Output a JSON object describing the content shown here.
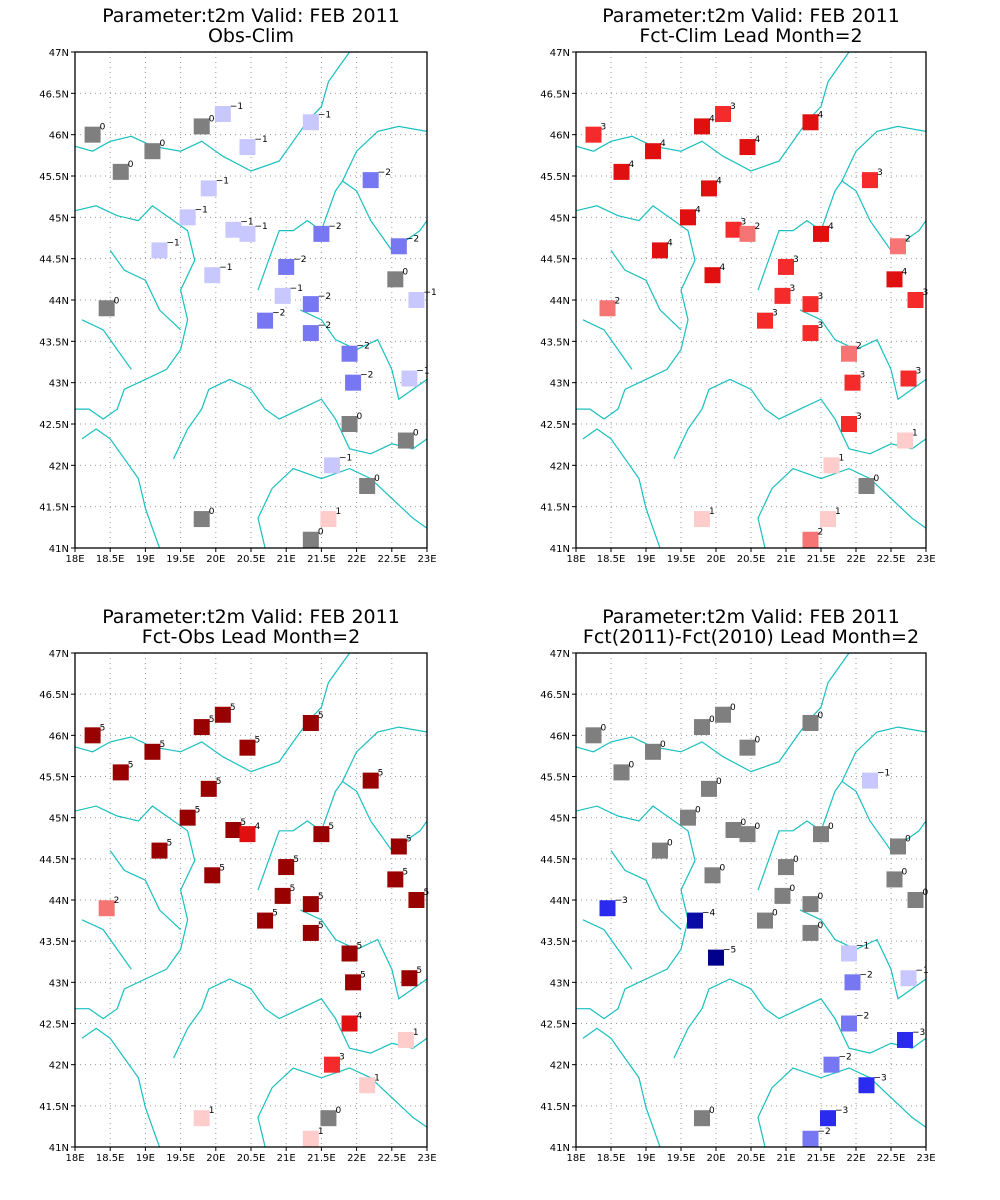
{
  "chart_data": [
    {
      "type": "scatter",
      "title": "Parameter:t2m Valid: FEB 2011",
      "subtitle": "Obs-Clim",
      "x_ticks": [
        "18E",
        "18.5E",
        "19E",
        "19.5E",
        "20E",
        "20.5E",
        "21E",
        "21.5E",
        "22E",
        "22.5E",
        "23E"
      ],
      "y_ticks": [
        "41N",
        "41.5N",
        "42N",
        "42.5N",
        "43N",
        "43.5N",
        "44N",
        "44.5N",
        "45N",
        "45.5N",
        "46N",
        "46.5N",
        "47N"
      ],
      "xlim": [
        18,
        23
      ],
      "ylim": [
        41,
        47
      ],
      "points": [
        {
          "lon": 18.25,
          "lat": 46.0,
          "v": 0
        },
        {
          "lon": 18.65,
          "lat": 45.55,
          "v": 0
        },
        {
          "lon": 19.1,
          "lat": 45.8,
          "v": 0
        },
        {
          "lon": 19.8,
          "lat": 46.1,
          "v": 0
        },
        {
          "lon": 20.1,
          "lat": 46.25,
          "v": -1
        },
        {
          "lon": 20.45,
          "lat": 45.85,
          "v": -1
        },
        {
          "lon": 21.35,
          "lat": 46.15,
          "v": -1
        },
        {
          "lon": 22.2,
          "lat": 45.45,
          "v": -2
        },
        {
          "lon": 19.9,
          "lat": 45.35,
          "v": -1
        },
        {
          "lon": 19.6,
          "lat": 45.0,
          "v": -1
        },
        {
          "lon": 20.25,
          "lat": 44.85,
          "v": -1
        },
        {
          "lon": 20.45,
          "lat": 44.8,
          "v": -1
        },
        {
          "lon": 21.5,
          "lat": 44.8,
          "v": -2
        },
        {
          "lon": 22.6,
          "lat": 44.65,
          "v": -2
        },
        {
          "lon": 19.2,
          "lat": 44.6,
          "v": -1
        },
        {
          "lon": 19.95,
          "lat": 44.3,
          "v": -1
        },
        {
          "lon": 21.0,
          "lat": 44.4,
          "v": -2
        },
        {
          "lon": 22.55,
          "lat": 44.25,
          "v": 0
        },
        {
          "lon": 20.95,
          "lat": 44.05,
          "v": -1
        },
        {
          "lon": 21.35,
          "lat": 43.95,
          "v": -2
        },
        {
          "lon": 22.85,
          "lat": 44.0,
          "v": -1
        },
        {
          "lon": 18.45,
          "lat": 43.9,
          "v": 0
        },
        {
          "lon": 20.7,
          "lat": 43.75,
          "v": -2
        },
        {
          "lon": 21.35,
          "lat": 43.6,
          "v": -2
        },
        {
          "lon": 21.9,
          "lat": 43.35,
          "v": -2
        },
        {
          "lon": 21.95,
          "lat": 43.0,
          "v": -2
        },
        {
          "lon": 22.75,
          "lat": 43.05,
          "v": -1
        },
        {
          "lon": 21.9,
          "lat": 42.5,
          "v": 0
        },
        {
          "lon": 22.7,
          "lat": 42.3,
          "v": 0
        },
        {
          "lon": 21.65,
          "lat": 42.0,
          "v": -1
        },
        {
          "lon": 22.15,
          "lat": 41.75,
          "v": 0
        },
        {
          "lon": 19.8,
          "lat": 41.35,
          "v": 0
        },
        {
          "lon": 21.6,
          "lat": 41.35,
          "v": 1
        },
        {
          "lon": 21.35,
          "lat": 41.1,
          "v": 0
        }
      ]
    },
    {
      "type": "scatter",
      "title": "Parameter:t2m Valid: FEB 2011",
      "subtitle": "Fct-Clim Lead Month=2",
      "x_ticks": [
        "18E",
        "18.5E",
        "19E",
        "19.5E",
        "20E",
        "20.5E",
        "21E",
        "21.5E",
        "22E",
        "22.5E",
        "23E"
      ],
      "y_ticks": [
        "41N",
        "41.5N",
        "42N",
        "42.5N",
        "43N",
        "43.5N",
        "44N",
        "44.5N",
        "45N",
        "45.5N",
        "46N",
        "46.5N",
        "47N"
      ],
      "xlim": [
        18,
        23
      ],
      "ylim": [
        41,
        47
      ],
      "points": [
        {
          "lon": 18.25,
          "lat": 46.0,
          "v": 3
        },
        {
          "lon": 18.65,
          "lat": 45.55,
          "v": 4
        },
        {
          "lon": 19.1,
          "lat": 45.8,
          "v": 4
        },
        {
          "lon": 19.8,
          "lat": 46.1,
          "v": 4
        },
        {
          "lon": 20.1,
          "lat": 46.25,
          "v": 3
        },
        {
          "lon": 20.45,
          "lat": 45.85,
          "v": 4
        },
        {
          "lon": 21.35,
          "lat": 46.15,
          "v": 4
        },
        {
          "lon": 22.2,
          "lat": 45.45,
          "v": 3
        },
        {
          "lon": 19.9,
          "lat": 45.35,
          "v": 4
        },
        {
          "lon": 19.6,
          "lat": 45.0,
          "v": 4
        },
        {
          "lon": 20.25,
          "lat": 44.85,
          "v": 3
        },
        {
          "lon": 20.45,
          "lat": 44.8,
          "v": 2
        },
        {
          "lon": 21.5,
          "lat": 44.8,
          "v": 4
        },
        {
          "lon": 22.6,
          "lat": 44.65,
          "v": 2
        },
        {
          "lon": 19.2,
          "lat": 44.6,
          "v": 4
        },
        {
          "lon": 19.95,
          "lat": 44.3,
          "v": 4
        },
        {
          "lon": 21.0,
          "lat": 44.4,
          "v": 3
        },
        {
          "lon": 22.55,
          "lat": 44.25,
          "v": 4
        },
        {
          "lon": 20.95,
          "lat": 44.05,
          "v": 3
        },
        {
          "lon": 21.35,
          "lat": 43.95,
          "v": 3
        },
        {
          "lon": 22.85,
          "lat": 44.0,
          "v": 3
        },
        {
          "lon": 18.45,
          "lat": 43.9,
          "v": 2
        },
        {
          "lon": 20.7,
          "lat": 43.75,
          "v": 3
        },
        {
          "lon": 21.35,
          "lat": 43.6,
          "v": 3
        },
        {
          "lon": 21.9,
          "lat": 43.35,
          "v": 2
        },
        {
          "lon": 21.95,
          "lat": 43.0,
          "v": 3
        },
        {
          "lon": 22.75,
          "lat": 43.05,
          "v": 3
        },
        {
          "lon": 21.9,
          "lat": 42.5,
          "v": 3
        },
        {
          "lon": 22.7,
          "lat": 42.3,
          "v": 1
        },
        {
          "lon": 21.65,
          "lat": 42.0,
          "v": 1
        },
        {
          "lon": 22.15,
          "lat": 41.75,
          "v": 0
        },
        {
          "lon": 19.8,
          "lat": 41.35,
          "v": 1
        },
        {
          "lon": 21.6,
          "lat": 41.35,
          "v": 1
        },
        {
          "lon": 21.35,
          "lat": 41.1,
          "v": 2
        }
      ]
    },
    {
      "type": "scatter",
      "title": "Parameter:t2m Valid: FEB 2011",
      "subtitle": "Fct-Obs Lead Month=2",
      "x_ticks": [
        "18E",
        "18.5E",
        "19E",
        "19.5E",
        "20E",
        "20.5E",
        "21E",
        "21.5E",
        "22E",
        "22.5E",
        "23E"
      ],
      "y_ticks": [
        "41N",
        "41.5N",
        "42N",
        "42.5N",
        "43N",
        "43.5N",
        "44N",
        "44.5N",
        "45N",
        "45.5N",
        "46N",
        "46.5N",
        "47N"
      ],
      "xlim": [
        18,
        23
      ],
      "ylim": [
        41,
        47
      ],
      "points": [
        {
          "lon": 18.25,
          "lat": 46.0,
          "v": 5
        },
        {
          "lon": 18.65,
          "lat": 45.55,
          "v": 5
        },
        {
          "lon": 19.1,
          "lat": 45.8,
          "v": 5
        },
        {
          "lon": 19.8,
          "lat": 46.1,
          "v": 5
        },
        {
          "lon": 20.1,
          "lat": 46.25,
          "v": 5
        },
        {
          "lon": 20.45,
          "lat": 45.85,
          "v": 5
        },
        {
          "lon": 21.35,
          "lat": 46.15,
          "v": 5
        },
        {
          "lon": 22.2,
          "lat": 45.45,
          "v": 5
        },
        {
          "lon": 19.9,
          "lat": 45.35,
          "v": 5
        },
        {
          "lon": 19.6,
          "lat": 45.0,
          "v": 5
        },
        {
          "lon": 20.25,
          "lat": 44.85,
          "v": 5
        },
        {
          "lon": 20.45,
          "lat": 44.8,
          "v": 4
        },
        {
          "lon": 21.5,
          "lat": 44.8,
          "v": 5
        },
        {
          "lon": 22.6,
          "lat": 44.65,
          "v": 5
        },
        {
          "lon": 19.2,
          "lat": 44.6,
          "v": 5
        },
        {
          "lon": 19.95,
          "lat": 44.3,
          "v": 5
        },
        {
          "lon": 21.0,
          "lat": 44.4,
          "v": 5
        },
        {
          "lon": 22.55,
          "lat": 44.25,
          "v": 5
        },
        {
          "lon": 20.95,
          "lat": 44.05,
          "v": 5
        },
        {
          "lon": 21.35,
          "lat": 43.95,
          "v": 5
        },
        {
          "lon": 22.85,
          "lat": 44.0,
          "v": 5
        },
        {
          "lon": 18.45,
          "lat": 43.9,
          "v": 2
        },
        {
          "lon": 20.7,
          "lat": 43.75,
          "v": 5
        },
        {
          "lon": 21.35,
          "lat": 43.6,
          "v": 5
        },
        {
          "lon": 21.9,
          "lat": 43.35,
          "v": 5
        },
        {
          "lon": 21.95,
          "lat": 43.0,
          "v": 5
        },
        {
          "lon": 22.75,
          "lat": 43.05,
          "v": 5
        },
        {
          "lon": 21.9,
          "lat": 42.5,
          "v": 4
        },
        {
          "lon": 22.7,
          "lat": 42.3,
          "v": 1
        },
        {
          "lon": 21.65,
          "lat": 42.0,
          "v": 3
        },
        {
          "lon": 22.15,
          "lat": 41.75,
          "v": 1
        },
        {
          "lon": 19.8,
          "lat": 41.35,
          "v": 1
        },
        {
          "lon": 21.6,
          "lat": 41.35,
          "v": 0
        },
        {
          "lon": 21.35,
          "lat": 41.1,
          "v": 1
        }
      ]
    },
    {
      "type": "scatter",
      "title": "Parameter:t2m Valid: FEB 2011",
      "subtitle": "Fct(2011)-Fct(2010) Lead Month=2",
      "x_ticks": [
        "18E",
        "18.5E",
        "19E",
        "19.5E",
        "20E",
        "20.5E",
        "21E",
        "21.5E",
        "22E",
        "22.5E",
        "23E"
      ],
      "y_ticks": [
        "41N",
        "41.5N",
        "42N",
        "42.5N",
        "43N",
        "43.5N",
        "44N",
        "44.5N",
        "45N",
        "45.5N",
        "46N",
        "46.5N",
        "47N"
      ],
      "xlim": [
        18,
        23
      ],
      "ylim": [
        41,
        47
      ],
      "points": [
        {
          "lon": 18.25,
          "lat": 46.0,
          "v": 0
        },
        {
          "lon": 18.65,
          "lat": 45.55,
          "v": 0
        },
        {
          "lon": 19.1,
          "lat": 45.8,
          "v": 0
        },
        {
          "lon": 19.8,
          "lat": 46.1,
          "v": 0
        },
        {
          "lon": 20.1,
          "lat": 46.25,
          "v": 0
        },
        {
          "lon": 20.45,
          "lat": 45.85,
          "v": 0
        },
        {
          "lon": 21.35,
          "lat": 46.15,
          "v": 0
        },
        {
          "lon": 22.2,
          "lat": 45.45,
          "v": -1
        },
        {
          "lon": 19.9,
          "lat": 45.35,
          "v": 0
        },
        {
          "lon": 19.6,
          "lat": 45.0,
          "v": 0
        },
        {
          "lon": 20.25,
          "lat": 44.85,
          "v": 0
        },
        {
          "lon": 20.45,
          "lat": 44.8,
          "v": 0
        },
        {
          "lon": 21.5,
          "lat": 44.8,
          "v": 0
        },
        {
          "lon": 22.6,
          "lat": 44.65,
          "v": 0
        },
        {
          "lon": 19.2,
          "lat": 44.6,
          "v": 0
        },
        {
          "lon": 19.95,
          "lat": 44.3,
          "v": 0
        },
        {
          "lon": 21.0,
          "lat": 44.4,
          "v": 0
        },
        {
          "lon": 22.55,
          "lat": 44.25,
          "v": 0
        },
        {
          "lon": 20.95,
          "lat": 44.05,
          "v": 0
        },
        {
          "lon": 21.35,
          "lat": 43.95,
          "v": 0
        },
        {
          "lon": 22.85,
          "lat": 44.0,
          "v": 0
        },
        {
          "lon": 18.45,
          "lat": 43.9,
          "v": -3
        },
        {
          "lon": 19.7,
          "lat": 43.75,
          "v": -4
        },
        {
          "lon": 20.7,
          "lat": 43.75,
          "v": 0
        },
        {
          "lon": 21.35,
          "lat": 43.6,
          "v": 0
        },
        {
          "lon": 20.0,
          "lat": 43.3,
          "v": -5
        },
        {
          "lon": 21.9,
          "lat": 43.35,
          "v": -1
        },
        {
          "lon": 21.95,
          "lat": 43.0,
          "v": -2
        },
        {
          "lon": 22.75,
          "lat": 43.05,
          "v": -1
        },
        {
          "lon": 21.9,
          "lat": 42.5,
          "v": -2
        },
        {
          "lon": 22.7,
          "lat": 42.3,
          "v": -3
        },
        {
          "lon": 21.65,
          "lat": 42.0,
          "v": -2
        },
        {
          "lon": 22.15,
          "lat": 41.75,
          "v": -3
        },
        {
          "lon": 19.8,
          "lat": 41.35,
          "v": 0
        },
        {
          "lon": 21.6,
          "lat": 41.35,
          "v": -3
        },
        {
          "lon": 21.35,
          "lat": 41.1,
          "v": -2
        }
      ]
    }
  ]
}
